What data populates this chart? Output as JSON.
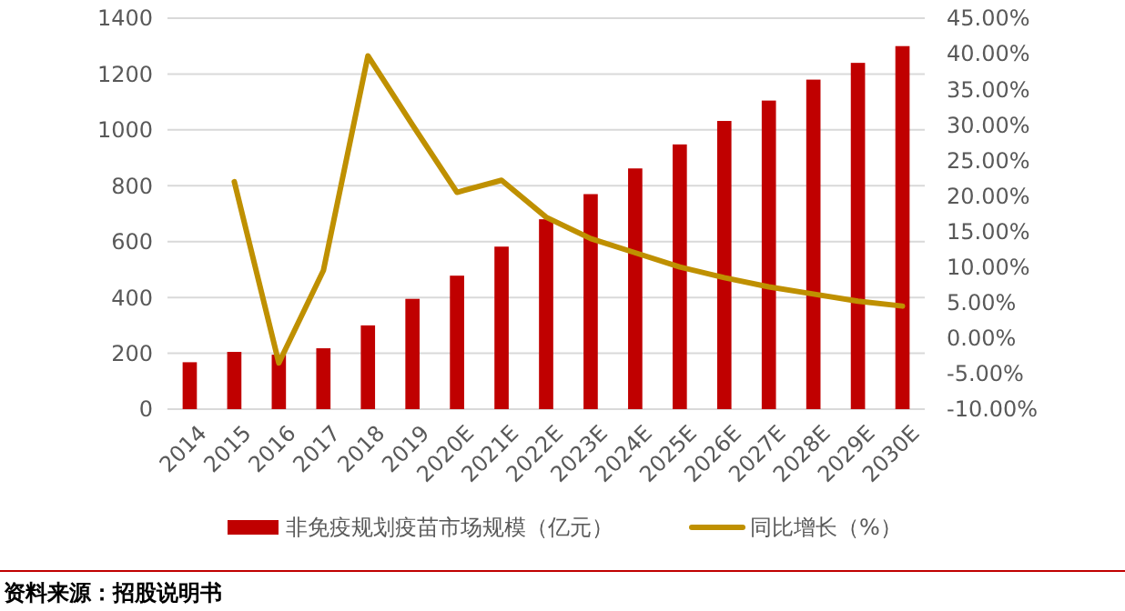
{
  "chart_data": {
    "type": "bar",
    "categories": [
      "2014",
      "2015",
      "2016",
      "2017",
      "2018",
      "2019",
      "2020E",
      "2021E",
      "2022E",
      "2023E",
      "2024E",
      "2025E",
      "2026E",
      "2027E",
      "2028E",
      "2029E",
      "2030E"
    ],
    "series": [
      {
        "name": "非免疫规划疫苗市场规模（亿元）",
        "color": "#c00000",
        "values": [
          168,
          205,
          195,
          218,
          300,
          395,
          478,
          582,
          680,
          770,
          862,
          948,
          1032,
          1105,
          1180,
          1240,
          1300
        ]
      },
      {
        "name": "同比增长（%）",
        "type": "line",
        "axis": "y2",
        "color": "#bf9000",
        "values": [
          null,
          22,
          -3.5,
          9.5,
          39.7,
          30,
          20.5,
          22.2,
          17,
          14,
          12,
          10,
          8.5,
          7.2,
          6.2,
          5.2,
          4.5
        ]
      }
    ],
    "ylim": [
      0,
      1400
    ],
    "yticks": [
      0,
      200,
      400,
      600,
      800,
      1000,
      1200,
      1400
    ],
    "y2lim": [
      -10,
      45
    ],
    "y2ticks": [
      {
        "value": -10,
        "label": "-10.00%"
      },
      {
        "value": -5,
        "label": "-5.00%"
      },
      {
        "value": 0,
        "label": "0.00%"
      },
      {
        "value": 5,
        "label": "5.00%"
      },
      {
        "value": 10,
        "label": "10.00%"
      },
      {
        "value": 15,
        "label": "15.00%"
      },
      {
        "value": 20,
        "label": "20.00%"
      },
      {
        "value": 25,
        "label": "25.00%"
      },
      {
        "value": 30,
        "label": "30.00%"
      },
      {
        "value": 35,
        "label": "35.00%"
      },
      {
        "value": 40,
        "label": "40.00%"
      },
      {
        "value": 45,
        "label": "45.00%"
      }
    ],
    "grid": "y",
    "legend": "bottom",
    "marker": "none",
    "line_style": "solid",
    "annotations": [
      "资料来源：招股说明书"
    ]
  }
}
